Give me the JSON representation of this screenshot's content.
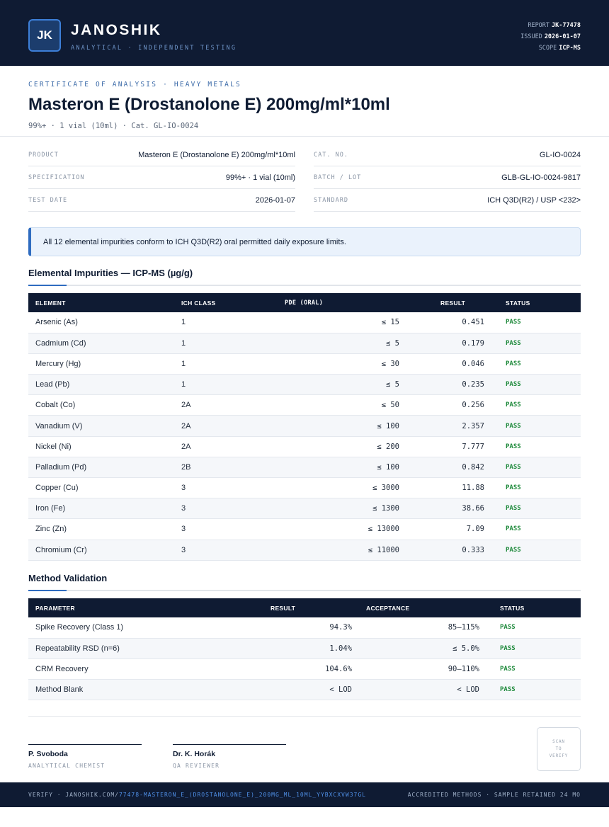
{
  "header": {
    "logo": "JK",
    "brand": "JANOSHIK",
    "tagline": "ANALYTICAL · INDEPENDENT TESTING",
    "report_label": "REPORT",
    "report_value": "JK-77478",
    "issued_label": "ISSUED",
    "issued_value": "2026-01-07",
    "scope_label": "SCOPE",
    "scope_value": "ICP-MS"
  },
  "title": {
    "kicker": "CERTIFICATE OF ANALYSIS · HEAVY METALS",
    "main": "Masteron E (Drostanolone E) 200mg/ml*10ml",
    "subtitle": "99%+ · 1 vial (10ml)  ·  Cat. GL-IO-0024"
  },
  "info": {
    "left": [
      {
        "label": "PRODUCT",
        "value": "Masteron E (Drostanolone E) 200mg/ml*10ml"
      },
      {
        "label": "SPECIFICATION",
        "value": "99%+ · 1 vial (10ml)"
      },
      {
        "label": "TEST DATE",
        "value": "2026-01-07"
      }
    ],
    "right": [
      {
        "label": "CAT. NO.",
        "value": "GL-IO-0024"
      },
      {
        "label": "BATCH / LOT",
        "value": "GLB-GL-IO-0024-9817"
      },
      {
        "label": "STANDARD",
        "value": "ICH Q3D(R2) / USP <232>"
      }
    ]
  },
  "banner": "All 12 elemental impurities conform to ICH Q3D(R2) oral permitted daily exposure limits.",
  "impurities": {
    "title": "Elemental Impurities — ICP-MS (µg/g)",
    "headers": [
      "ELEMENT",
      "ICH CLASS",
      "PDE (ORAL)",
      "RESULT",
      "STATUS"
    ],
    "rows": [
      {
        "element": "Arsenic (As)",
        "class": "1",
        "pde": "≤ 15",
        "result": "0.451",
        "status": "PASS"
      },
      {
        "element": "Cadmium (Cd)",
        "class": "1",
        "pde": "≤ 5",
        "result": "0.179",
        "status": "PASS"
      },
      {
        "element": "Mercury (Hg)",
        "class": "1",
        "pde": "≤ 30",
        "result": "0.046",
        "status": "PASS"
      },
      {
        "element": "Lead (Pb)",
        "class": "1",
        "pde": "≤ 5",
        "result": "0.235",
        "status": "PASS"
      },
      {
        "element": "Cobalt (Co)",
        "class": "2A",
        "pde": "≤ 50",
        "result": "0.256",
        "status": "PASS"
      },
      {
        "element": "Vanadium (V)",
        "class": "2A",
        "pde": "≤ 100",
        "result": "2.357",
        "status": "PASS"
      },
      {
        "element": "Nickel (Ni)",
        "class": "2A",
        "pde": "≤ 200",
        "result": "7.777",
        "status": "PASS"
      },
      {
        "element": "Palladium (Pd)",
        "class": "2B",
        "pde": "≤ 100",
        "result": "0.842",
        "status": "PASS"
      },
      {
        "element": "Copper (Cu)",
        "class": "3",
        "pde": "≤ 3000",
        "result": "11.88",
        "status": "PASS"
      },
      {
        "element": "Iron (Fe)",
        "class": "3",
        "pde": "≤ 1300",
        "result": "38.66",
        "status": "PASS"
      },
      {
        "element": "Zinc (Zn)",
        "class": "3",
        "pde": "≤ 13000",
        "result": "7.09",
        "status": "PASS"
      },
      {
        "element": "Chromium (Cr)",
        "class": "3",
        "pde": "≤ 11000",
        "result": "0.333",
        "status": "PASS"
      }
    ]
  },
  "validation": {
    "title": "Method Validation",
    "headers": [
      "PARAMETER",
      "RESULT",
      "ACCEPTANCE",
      "STATUS"
    ],
    "rows": [
      {
        "parameter": "Spike Recovery (Class 1)",
        "result": "94.3%",
        "acceptance": "85–115%",
        "status": "PASS"
      },
      {
        "parameter": "Repeatability RSD (n=6)",
        "result": "1.04%",
        "acceptance": "≤ 5.0%",
        "status": "PASS"
      },
      {
        "parameter": "CRM Recovery",
        "result": "104.6%",
        "acceptance": "90–110%",
        "status": "PASS"
      },
      {
        "parameter": "Method Blank",
        "result": "< LOD",
        "acceptance": "< LOD",
        "status": "PASS"
      }
    ]
  },
  "signatures": [
    {
      "name": "P. Svoboda",
      "role": "ANALYTICAL CHEMIST"
    },
    {
      "name": "Dr. K. Horák",
      "role": "QA REVIEWER"
    }
  ],
  "qr": {
    "line1": "SCAN",
    "line2": "TO",
    "line3": "VERIFY"
  },
  "footer": {
    "verify_prefix": "VERIFY · JANOSHIK.COM/",
    "verify_path": "77478-MASTERON_E_(DROSTANOLONE_E)_200MG_ML_10ML_YYBXCXVW37GL",
    "right": "ACCREDITED METHODS · SAMPLE RETAINED 24 MO"
  },
  "colors": {
    "navy": "#0f1b33",
    "accent": "#2f6cc0",
    "pass": "#1f8a3c"
  }
}
